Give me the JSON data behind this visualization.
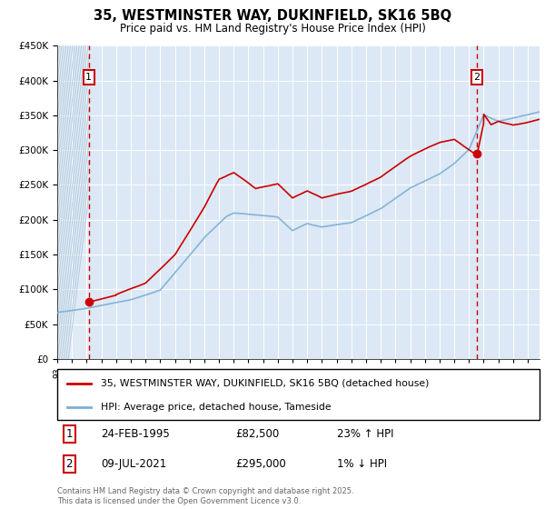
{
  "title": "35, WESTMINSTER WAY, DUKINFIELD, SK16 5BQ",
  "subtitle": "Price paid vs. HM Land Registry's House Price Index (HPI)",
  "legend_line1": "35, WESTMINSTER WAY, DUKINFIELD, SK16 5BQ (detached house)",
  "legend_line2": "HPI: Average price, detached house, Tameside",
  "annotation1_date": "24-FEB-1995",
  "annotation1_price": "£82,500",
  "annotation1_hpi": "23% ↑ HPI",
  "annotation2_date": "09-JUL-2021",
  "annotation2_price": "£295,000",
  "annotation2_hpi": "1% ↓ HPI",
  "copyright": "Contains HM Land Registry data © Crown copyright and database right 2025.\nThis data is licensed under the Open Government Licence v3.0.",
  "ylim": [
    0,
    450000
  ],
  "yticks": [
    0,
    50000,
    100000,
    150000,
    200000,
    250000,
    300000,
    350000,
    400000,
    450000
  ],
  "red_color": "#cc0000",
  "blue_color": "#7aafd4",
  "background_plot": "#dce8f5",
  "hatch_color": "#b8cfe0",
  "grid_color": "#ffffff",
  "ann1_x": 1995.15,
  "ann2_x": 2021.53,
  "ann1_y": 82500,
  "ann2_y": 295000,
  "xmin": 1993.0,
  "xmax": 2025.8
}
